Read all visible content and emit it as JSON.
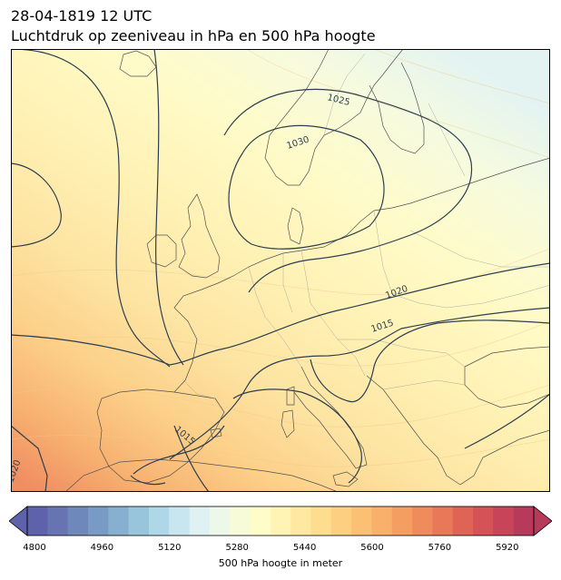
{
  "title": {
    "line1": "28-04-1819 12 UTC",
    "line2": "Luchtdruk op zeeniveau in hPa en 500 hPa hoogte"
  },
  "isobar_labels": [
    "1025",
    "1030",
    "1020",
    "1015",
    "1015",
    "1020"
  ],
  "colorbar": {
    "label": "500 hPa hoogte in meter",
    "ticks": [
      "4800",
      "4960",
      "5120",
      "5280",
      "5440",
      "5600",
      "5760",
      "5920"
    ],
    "min": 4800,
    "max": 6000,
    "step": 40,
    "colors": [
      "#5e62aa",
      "#6675b2",
      "#6e88bb",
      "#789bc6",
      "#86afd0",
      "#98c4dc",
      "#aed8e8",
      "#c7e6f0",
      "#dff1f2",
      "#eef8e8",
      "#f7fbd8",
      "#fefcc8",
      "#fff4b4",
      "#ffe9a0",
      "#fedd8e",
      "#fdcf80",
      "#fcc074",
      "#f9b06a",
      "#f59e62",
      "#f08c5c",
      "#e97858",
      "#e06456",
      "#d55256",
      "#c84458",
      "#b83a5a"
    ]
  }
}
